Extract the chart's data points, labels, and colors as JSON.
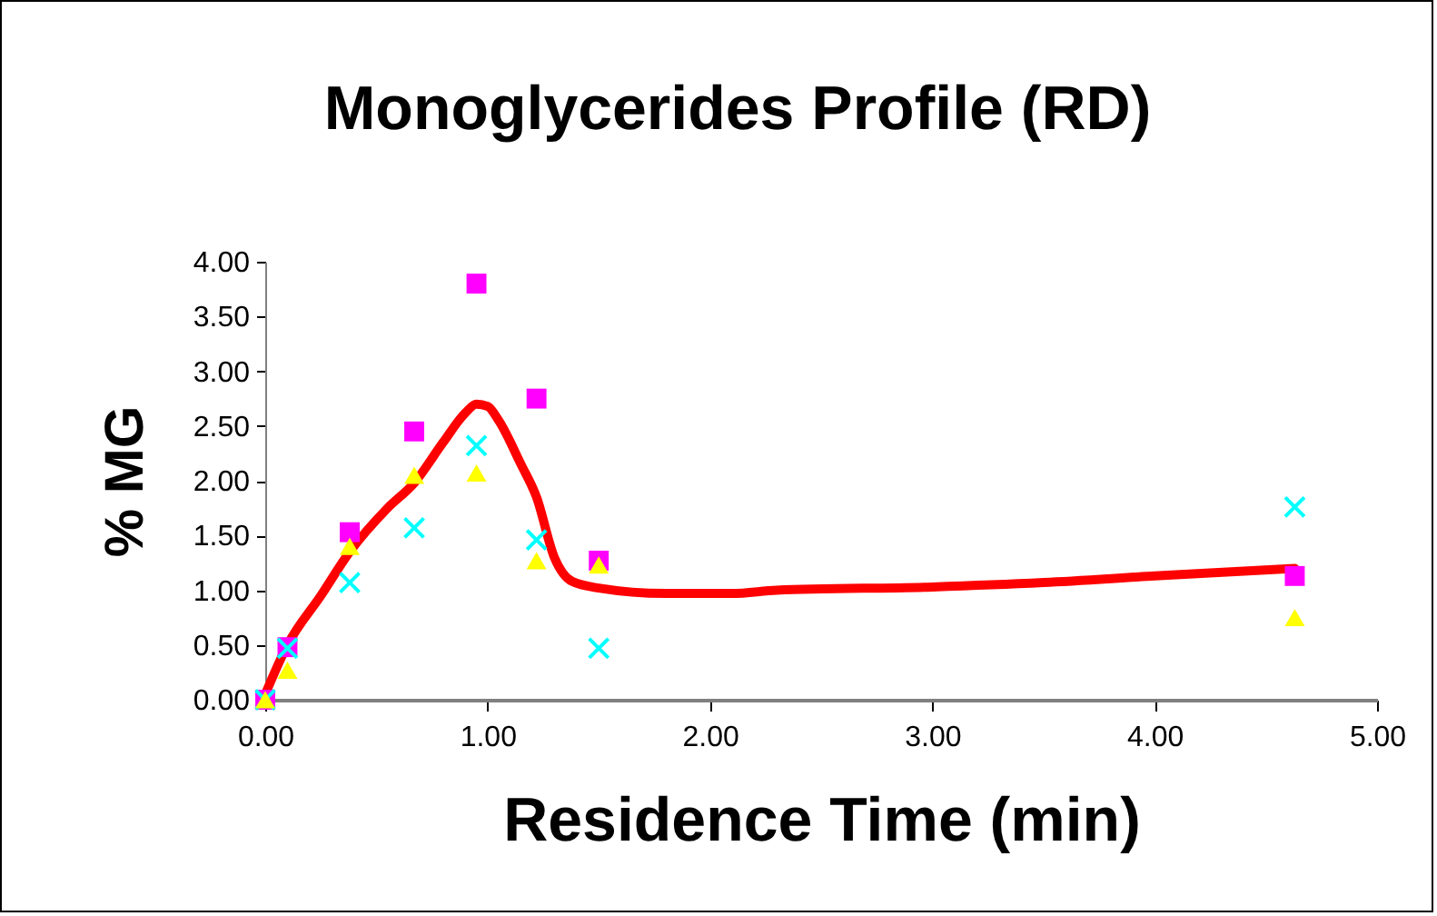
{
  "chart_data": {
    "type": "scatter",
    "title": "Monoglycerides Profile (RD)",
    "xlabel": "Residence Time (min)",
    "ylabel": "% MG",
    "xlim": [
      0,
      5
    ],
    "ylim": [
      0,
      4
    ],
    "xticks": [
      {
        "value": 0,
        "label": "0.00"
      },
      {
        "value": 1,
        "label": "1.00"
      },
      {
        "value": 2,
        "label": "2.00"
      },
      {
        "value": 3,
        "label": "3.00"
      },
      {
        "value": 4,
        "label": "4.00"
      },
      {
        "value": 5,
        "label": "5.00"
      }
    ],
    "yticks": [
      {
        "value": 0,
        "label": "0.00"
      },
      {
        "value": 0.5,
        "label": "0.50"
      },
      {
        "value": 1,
        "label": "1.00"
      },
      {
        "value": 1.5,
        "label": "1.50"
      },
      {
        "value": 2,
        "label": "2.00"
      },
      {
        "value": 2.5,
        "label": "2.50"
      },
      {
        "value": 3,
        "label": "3.00"
      },
      {
        "value": 3.5,
        "label": "3.50"
      },
      {
        "value": 4,
        "label": "4.00"
      }
    ],
    "x": [
      0,
      0.1,
      0.38,
      0.67,
      0.95,
      1.22,
      1.5,
      4.63
    ],
    "series": [
      {
        "color": "#ff00ff",
        "marker": "square",
        "values": [
          0,
          0.48,
          1.53,
          2.45,
          3.8,
          2.75,
          1.27,
          1.13
        ]
      },
      {
        "color": "#00ffff",
        "marker": "cross",
        "values": [
          0,
          0.47,
          1.07,
          1.57,
          2.32,
          1.46,
          0.47,
          1.76
        ]
      },
      {
        "color": "#ffff00",
        "marker": "triangle",
        "values": [
          0,
          0.27,
          1.4,
          2.05,
          2.07,
          1.27,
          1.23,
          0.75
        ]
      },
      {
        "type": "line",
        "color": "#ff0000",
        "marker": "none",
        "line_style": "solid",
        "x": [
          0,
          0.1,
          0.25,
          0.38,
          0.55,
          0.67,
          0.8,
          0.9,
          0.95,
          1.0,
          1.05,
          1.15,
          1.22,
          1.3,
          1.38,
          1.5,
          1.8,
          2.1,
          2.3,
          3.0,
          3.5,
          4.0,
          4.63
        ],
        "values": [
          0.05,
          0.5,
          0.95,
          1.35,
          1.75,
          1.98,
          2.35,
          2.62,
          2.7,
          2.68,
          2.55,
          2.15,
          1.85,
          1.3,
          1.08,
          1.02,
          0.97,
          0.97,
          1.0,
          1.03,
          1.07,
          1.13,
          1.2
        ]
      }
    ]
  }
}
